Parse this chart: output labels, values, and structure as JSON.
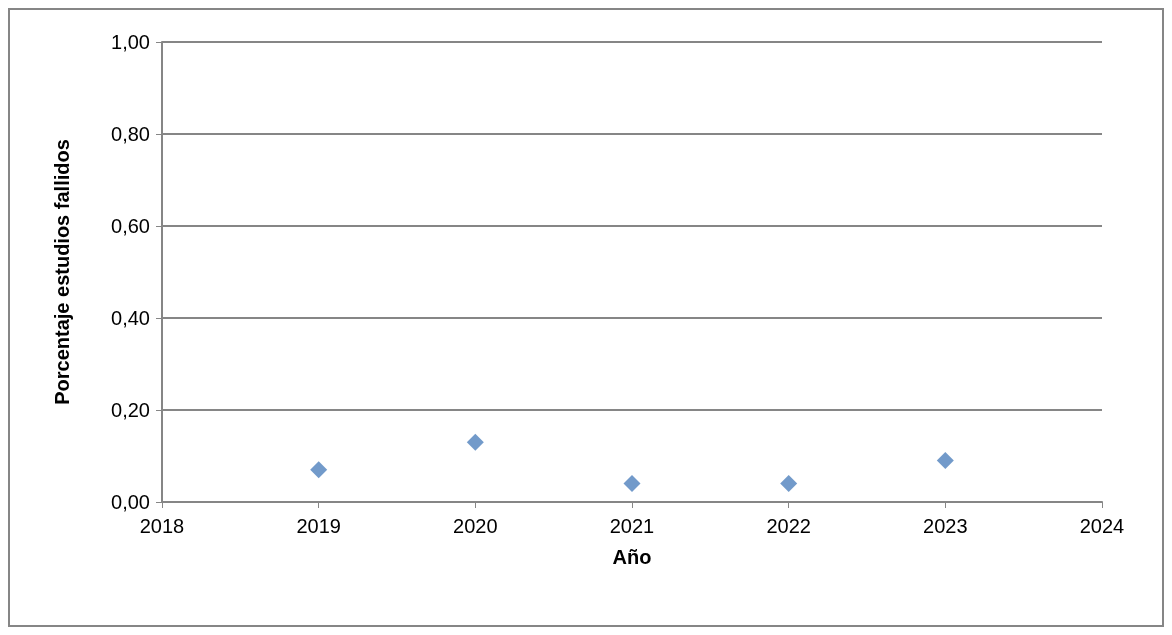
{
  "chart_data": {
    "type": "scatter",
    "xlabel": "Año",
    "ylabel": "Porcentaje estudios fallidos",
    "x": [
      2019,
      2020,
      2021,
      2022,
      2023
    ],
    "values": [
      0.07,
      0.13,
      0.04,
      0.04,
      0.09
    ],
    "color": "#4f81bd",
    "marker": "diamond",
    "xlim": [
      2018,
      2024
    ],
    "xticks": [
      2018,
      2019,
      2020,
      2021,
      2022,
      2023,
      2024
    ],
    "ylim": [
      0,
      1
    ],
    "yticks": [
      {
        "value": 0,
        "label": "0,00"
      },
      {
        "value": 0.2,
        "label": "0,20"
      },
      {
        "value": 0.4,
        "label": "0,40"
      },
      {
        "value": 0.6,
        "label": "0,60"
      },
      {
        "value": 0.8,
        "label": "0,80"
      },
      {
        "value": 1,
        "label": "1,00"
      }
    ],
    "grid": "y"
  }
}
